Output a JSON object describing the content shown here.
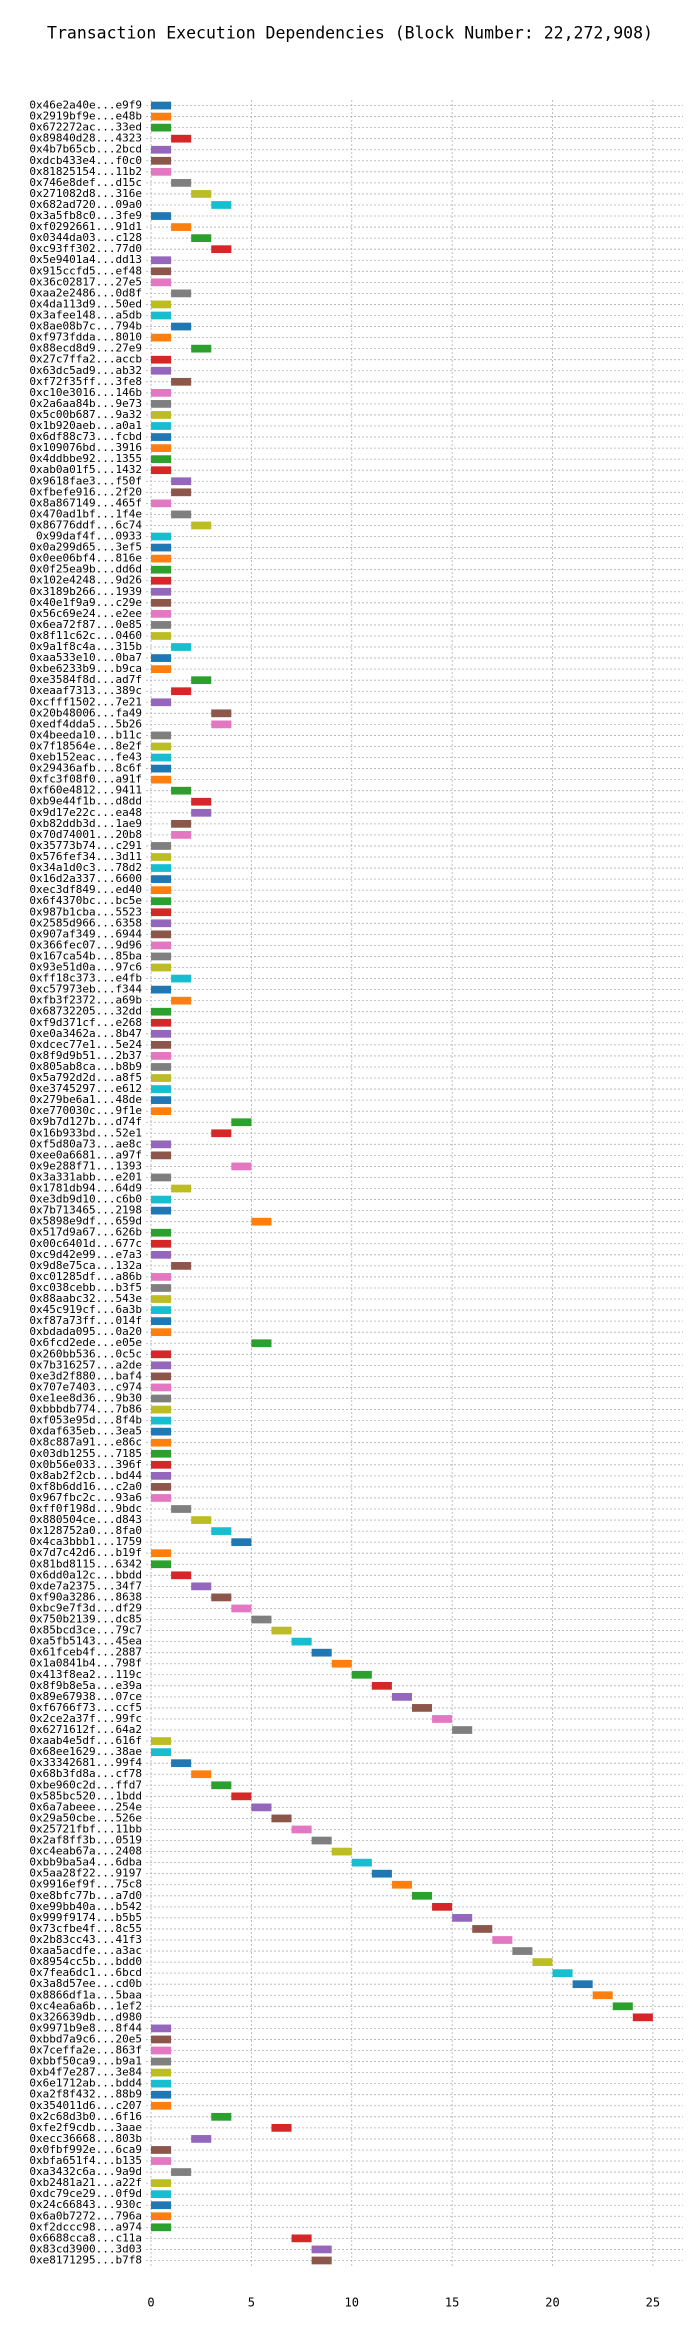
{
  "chart_data": {
    "type": "barh-timeline",
    "title": "Transaction Execution Dependencies (Block Number: 22,272,908)",
    "categories": [
      "0x46e2a40e...e9f9",
      "0x2919bf9e...e48b",
      "0x672272ac...33ed",
      "0x89840d28...4323",
      "0x4b7b65cb...2bcd",
      "0xdcb433e4...f0c0",
      "0x81825154...11b2",
      "0x746e8def...d15c",
      "0x271082d8...316e",
      "0x682ad720...09a0",
      "0x3a5fb8c0...3fe9",
      "0xf0292661...91d1",
      "0x0344da03...c128",
      "0xc93ff302...77d0",
      "0x5e9401a4...dd13",
      "0x915ccfd5...ef48",
      "0x36c02817...27e5",
      "0xaa2e2486...0d8f",
      "0x4da113d9...50ed",
      "0x3afee148...a5db",
      "0x8ae08b7c...794b",
      "0xf973fdda...8010",
      "0x88ecd8d9...27e9",
      "0x27c7ffa2...accb",
      "0x63dc5ad9...ab32",
      "0xf72f35ff...3fe8",
      "0xc10e3016...146b",
      "0x2a6aa84b...9e73",
      "0x5c00b687...9a32",
      "0x1b920aeb...a0a1",
      "0x6df88c73...fcbd",
      "0x109076bd...3916",
      "0x4ddbbe92...1355",
      "0xab0a01f5...1432",
      "0x9618fae3...f50f",
      "0xfbefe916...2f20",
      "0x8a867149...465f",
      "0x470ad1bf...1f4e",
      "0x86776ddf...6c74",
      "0x99daf4f...0933",
      "0x0a299d65...3ef5",
      "0x0ee06bf4...816e",
      "0x0f25ea9b...dd6d",
      "0x102e4248...9d26",
      "0x3189b266...1939",
      "0x40e1f9a9...c29e",
      "0x56c69e24...e2ee",
      "0x6ea72f87...0e85",
      "0x8f11c62c...0460",
      "0x9a1f8c4a...315b",
      "0xaa533e10...0ba7",
      "0xbe6233b9...b9ca",
      "0xe3584f8d...ad7f",
      "0xeaaf7313...389c",
      "0xcfff1502...7e21",
      "0x20b48006...fa49",
      "0xedf4dda5...5b26",
      "0x4beeda10...b11c",
      "0x7f18564e...8e2f",
      "0xeb152eac...fe43",
      "0x29436afb...8c6f",
      "0xfc3f08f0...a91f",
      "0xf60e4812...9411",
      "0xb9e44f1b...d8dd",
      "0x9d17e22c...ea48",
      "0xb82ddb3d...1ae9",
      "0x70d74001...20b8",
      "0x35773b74...c291",
      "0x576fef34...3d11",
      "0x34a1d0c3...78d2",
      "0x16d2a337...6600",
      "0xec3df849...ed40",
      "0x6f4370bc...bc5e",
      "0x987b1cba...5523",
      "0x2585d966...6358",
      "0x907af349...6944",
      "0x366fec07...9d96",
      "0x167ca54b...85ba",
      "0x93e51d0a...97c6",
      "0xff18c373...e4fb",
      "0xc57973eb...f344",
      "0xfb3f2372...a69b",
      "0x68732205...32dd",
      "0xf9d371cf...e268",
      "0xe0a3462a...8b47",
      "0xdcec77e1...5e24",
      "0x8f9d9b51...2b37",
      "0x805ab8ca...b8b9",
      "0x5a792d2d...a8f5",
      "0xe3745297...e612",
      "0x279be6a1...48de",
      "0xe770030c...9f1e",
      "0x9b7d127b...d74f",
      "0x16b933bd...52e1",
      "0xf5d80a73...ae8c",
      "0xee0a6681...a97f",
      "0x9e288f71...1393",
      "0x3a331abb...e201",
      "0x1781db94...64d9",
      "0xe3db9d10...c6b0",
      "0x7b713465...2198",
      "0x5898e9df...659d",
      "0x517d9a67...626b",
      "0x00c6401d...677c",
      "0xc9d42e99...e7a3",
      "0x9d8e75ca...132a",
      "0xc01285df...a86b",
      "0xc038cebb...b3f5",
      "0x88aabc32...543e",
      "0x45c919cf...6a3b",
      "0xf87a73ff...014f",
      "0xbdada095...0a20",
      "0x6fcd2ede...e05e",
      "0x260bb536...0c5c",
      "0x7b316257...a2de",
      "0xe3d2f880...baf4",
      "0x707e7403...c974",
      "0xe1ee8d36...9b30",
      "0xbbbdb774...7b86",
      "0xf053e95d...8f4b",
      "0xdaf635eb...3ea5",
      "0x8c887a91...e86c",
      "0x03db1255...7185",
      "0x0b56e033...396f",
      "0x8ab2f2cb...bd44",
      "0xf8b6dd16...c2a0",
      "0x967fbc2c...93a6",
      "0xff0f198d...9bdc",
      "0x880504ce...d843",
      "0x128752a0...8fa0",
      "0x4ca3bbb1...1759",
      "0x7d7c42d6...b19f",
      "0x81bd8115...6342",
      "0x6dd0a12c...bbdd",
      "0xde7a2375...34f7",
      "0xf90a3286...8638",
      "0xbc9e7f3d...df29",
      "0x750b2139...dc85",
      "0x85bcd3ce...79c7",
      "0xa5fb5143...45ea",
      "0x61fceb4f...2887",
      "0x1a0841b4...798f",
      "0x413f8ea2...119c",
      "0x8f9b8e5a...e39a",
      "0x89e67938...07ce",
      "0xf6766f73...ccf5",
      "0x2ce2a37f...99fc",
      "0x6271612f...64a2",
      "0xaab4e5df...616f",
      "0x68ee1629...38ae",
      "0x33342681...99f4",
      "0x68b3fd8a...cf78",
      "0xbe960c2d...ffd7",
      "0x585bc520...1bdd",
      "0x6a7abeee...254e",
      "0x29a50cbe...526e",
      "0x25721fbf...11bb",
      "0x2af8ff3b...0519",
      "0xc4eab67a...2408",
      "0xbb9ba5a4...6dba",
      "0x5aa28f22...9197",
      "0x9916ef9f...75c8",
      "0xe8bfc77b...a7d0",
      "0xe99bb40a...b542",
      "0x999f9174...b5b5",
      "0x73cfbe4f...8c55",
      "0x2b83cc43...41f3",
      "0xaa5acdfe...a3ac",
      "0x8954cc5b...bdd0",
      "0x7fea6dc1...6bcd",
      "0x3a8d57ee...cd0b",
      "0x8866df1a...5baa",
      "0xc4ea6a6b...1ef2",
      "0x326639db...d980",
      "0x9971b9e8...8f44",
      "0xbbd7a9c6...20e5",
      "0x7ceffa2e...863f",
      "0xbbf50ca9...b9a1",
      "0xb4f7e287...3e84",
      "0x6e1712ab...bdd4",
      "0xa2f8f432...88b9",
      "0x354011d6...c207",
      "0x2c68d3b0...6f16",
      "0xfe2f9cdb...3aae",
      "0xecc36668...803b",
      "0x0fbf992e...6ca9",
      "0xbfa651f4...b135",
      "0xa3432c6a...9a9d",
      "0xb2481a21...a22f",
      "0xdc79ce29...0f9d",
      "0x24c66843...930c",
      "0x6a0b7272...796a",
      "0xf2dccc98...a974",
      "0x6688cca8...c11a",
      "0x83cd3900...3d03",
      "0xe8171295...b7f8"
    ],
    "values": [
      0,
      0,
      0,
      1,
      0,
      0,
      0,
      1,
      2,
      3,
      0,
      1,
      2,
      3,
      0,
      0,
      0,
      1,
      0,
      0,
      1,
      0,
      2,
      0,
      0,
      1,
      0,
      0,
      0,
      0,
      0,
      0,
      0,
      0,
      1,
      1,
      0,
      1,
      2,
      0,
      0,
      0,
      0,
      0,
      0,
      0,
      0,
      0,
      0,
      1,
      0,
      0,
      2,
      1,
      0,
      3,
      3,
      0,
      0,
      0,
      0,
      0,
      1,
      2,
      2,
      1,
      1,
      0,
      0,
      0,
      0,
      0,
      0,
      0,
      0,
      0,
      0,
      0,
      0,
      1,
      0,
      1,
      0,
      0,
      0,
      0,
      0,
      0,
      0,
      0,
      0,
      0,
      4,
      3,
      0,
      0,
      4,
      0,
      1,
      0,
      0,
      5,
      0,
      0,
      0,
      1,
      0,
      0,
      0,
      0,
      0,
      0,
      5,
      0,
      0,
      0,
      0,
      0,
      0,
      0,
      0,
      0,
      0,
      0,
      0,
      0,
      0,
      1,
      2,
      3,
      4,
      0,
      0,
      1,
      2,
      3,
      4,
      5,
      6,
      7,
      8,
      9,
      10,
      11,
      12,
      13,
      14,
      15,
      0,
      0,
      1,
      2,
      3,
      4,
      5,
      6,
      7,
      8,
      9,
      10,
      11,
      12,
      13,
      14,
      15,
      16,
      17,
      18,
      19,
      20,
      21,
      22,
      23,
      24,
      0,
      0,
      0,
      0,
      0,
      0,
      0,
      0,
      3,
      6,
      2,
      0,
      0,
      1,
      0,
      0,
      0,
      0,
      0,
      7,
      8,
      8
    ],
    "bar_length": 1,
    "colors": [
      "#1f77b4",
      "#ff7f0e",
      "#2ca02c",
      "#d62728",
      "#9467bd",
      "#8c564b",
      "#e377c2",
      "#7f7f7f",
      "#bcbd22",
      "#17becf"
    ],
    "xlim": [
      -0.25,
      26.5
    ],
    "xticks": [
      0,
      5,
      10,
      15,
      20,
      25
    ],
    "grid": true
  }
}
